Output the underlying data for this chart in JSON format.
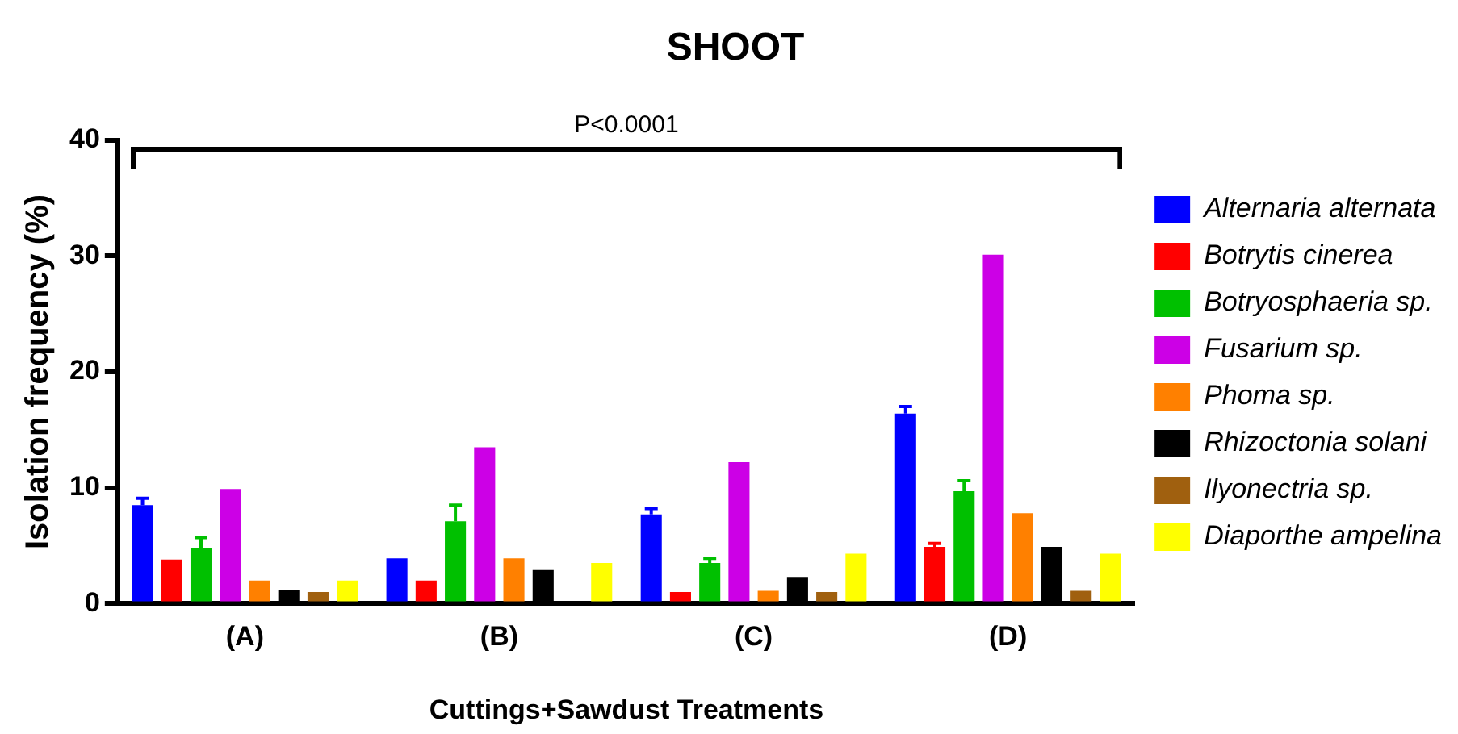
{
  "chart_data": {
    "type": "bar",
    "title": "SHOOT",
    "xlabel": "Cuttings+Sawdust Treatments",
    "ylabel": "Isolation frequency (%)",
    "categories": [
      "(A)",
      "(B)",
      "(C)",
      "(D)"
    ],
    "series": [
      {
        "name": "Alternaria alternata",
        "color": "#0000ff",
        "values": [
          8.5,
          3.9,
          7.7,
          16.4
        ],
        "errors": [
          [
            8.5,
            9.1
          ],
          null,
          [
            7.7,
            8.2
          ],
          [
            16.4,
            17.0
          ]
        ]
      },
      {
        "name": "Botrytis cinerea",
        "color": "#ff0000",
        "values": [
          3.8,
          2.0,
          1.0,
          4.9
        ],
        "errors": [
          null,
          null,
          null,
          [
            4.9,
            5.2
          ]
        ]
      },
      {
        "name": "Botryosphaeria sp.",
        "color": "#00c000",
        "values": [
          4.8,
          7.1,
          3.5,
          9.7
        ],
        "errors": [
          [
            4.8,
            5.7
          ],
          [
            7.1,
            8.5
          ],
          [
            3.5,
            3.9
          ],
          [
            9.7,
            10.6
          ]
        ]
      },
      {
        "name": "Fusarium sp.",
        "color": "#cc00e6",
        "values": [
          9.9,
          13.5,
          12.2,
          30.1
        ]
      },
      {
        "name": "Phoma sp.",
        "color": "#ff8000",
        "values": [
          2.0,
          3.9,
          1.1,
          7.8
        ]
      },
      {
        "name": "Rhizoctonia solani",
        "color": "#000000",
        "values": [
          1.2,
          2.9,
          2.3,
          4.9
        ]
      },
      {
        "name": "Ilyonectria sp.",
        "color": "#a0600f",
        "values": [
          1.0,
          0,
          1.0,
          1.1
        ]
      },
      {
        "name": "Diaporthe ampelina",
        "color": "#ffff00",
        "values": [
          2.0,
          3.5,
          4.3,
          4.3
        ]
      }
    ],
    "ylim": [
      0,
      40
    ],
    "yticks": [
      0,
      10,
      20,
      30,
      40
    ],
    "grid": false,
    "legend": "right",
    "annotations": [
      "P<0.0001"
    ]
  }
}
